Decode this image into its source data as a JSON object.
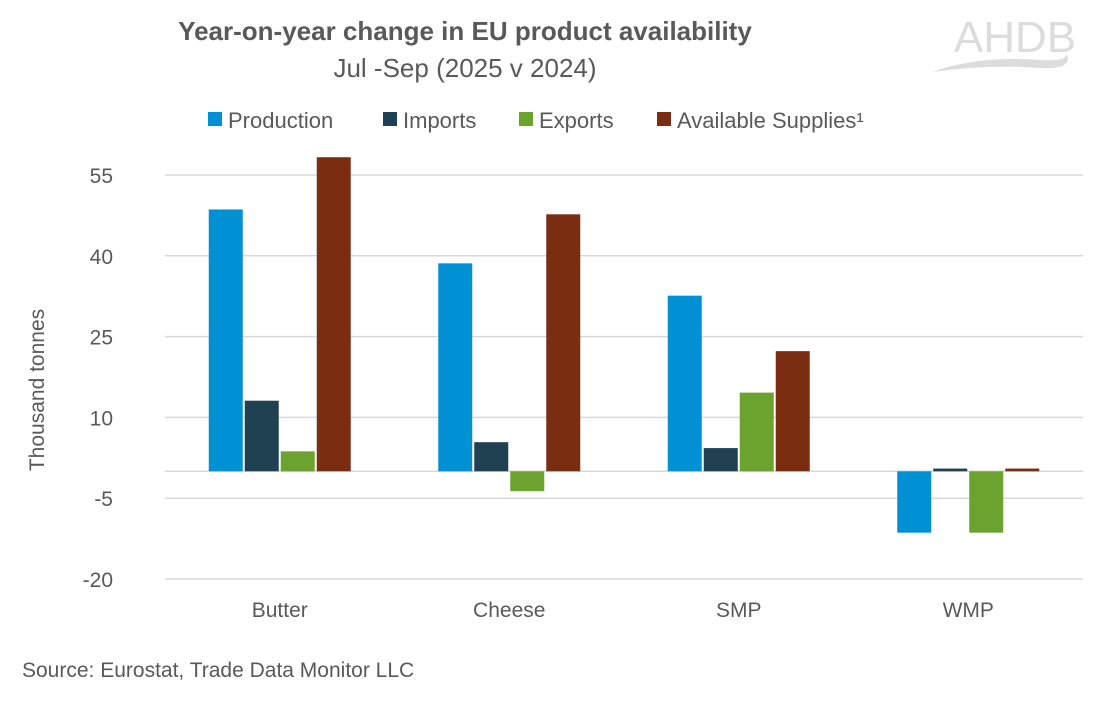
{
  "chart_data": {
    "type": "bar",
    "title": "Year-on-year change in EU product availability",
    "subtitle": "Jul -Sep (2025 v 2024)",
    "xlabel": "",
    "ylabel": "Thousand tonnes",
    "ylim": [
      -20,
      60
    ],
    "yticks": [
      -20,
      -5,
      10,
      25,
      40,
      55
    ],
    "grid": true,
    "legend_position": "top",
    "categories": [
      "Butter",
      "Cheese",
      "SMP",
      "WMP"
    ],
    "series": [
      {
        "name": "Production",
        "color": "#0090D4",
        "values": [
          48.6,
          38.6,
          32.6,
          -11.4
        ]
      },
      {
        "name": "Imports",
        "color": "#1F4152",
        "values": [
          13.1,
          5.4,
          4.3,
          0.5
        ]
      },
      {
        "name": "Exports",
        "color": "#6BA32E",
        "values": [
          3.7,
          -3.7,
          14.6,
          -11.4
        ]
      },
      {
        "name": "Available Supplies¹",
        "color": "#7B2D12",
        "values": [
          58.3,
          47.7,
          22.3,
          0.5
        ]
      }
    ],
    "source": "Source: Eurostat, Trade Data Monitor LLC"
  },
  "logo": {
    "text": "AHDB"
  }
}
